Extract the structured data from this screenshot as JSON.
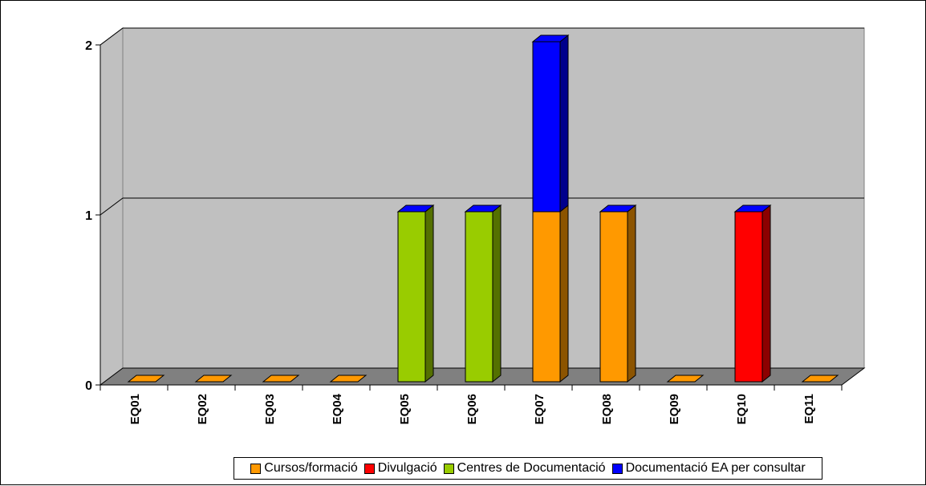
{
  "chart_data": {
    "type": "bar",
    "stacked": true,
    "three_d": true,
    "categories": [
      "EQ01",
      "EQ02",
      "EQ03",
      "EQ04",
      "EQ05",
      "EQ06",
      "EQ07",
      "EQ08",
      "EQ09",
      "EQ10",
      "EQ11"
    ],
    "series": [
      {
        "name": "Cursos/formació",
        "color": "#FF9900",
        "values": [
          0,
          0,
          0,
          0,
          0,
          0,
          1,
          1,
          0,
          0,
          0
        ]
      },
      {
        "name": "Divulgació",
        "color": "#FF0000",
        "values": [
          0,
          0,
          0,
          0,
          0,
          0,
          0,
          0,
          0,
          1,
          0
        ]
      },
      {
        "name": "Centres de Documentació",
        "color": "#99CC00",
        "values": [
          0,
          0,
          0,
          0,
          1,
          1,
          0,
          0,
          0,
          0,
          0
        ]
      },
      {
        "name": "Documentació EA per consultar",
        "color": "#0000FF",
        "values": [
          0,
          0,
          0,
          0,
          0,
          0,
          1,
          0,
          0,
          0,
          0
        ]
      }
    ],
    "ylim": [
      0,
      2
    ],
    "yticks": [
      "0",
      "1",
      "2"
    ],
    "grid": true,
    "legend_position": "bottom",
    "wall_color": "#C0C0C0",
    "floor_color": "#808080"
  }
}
